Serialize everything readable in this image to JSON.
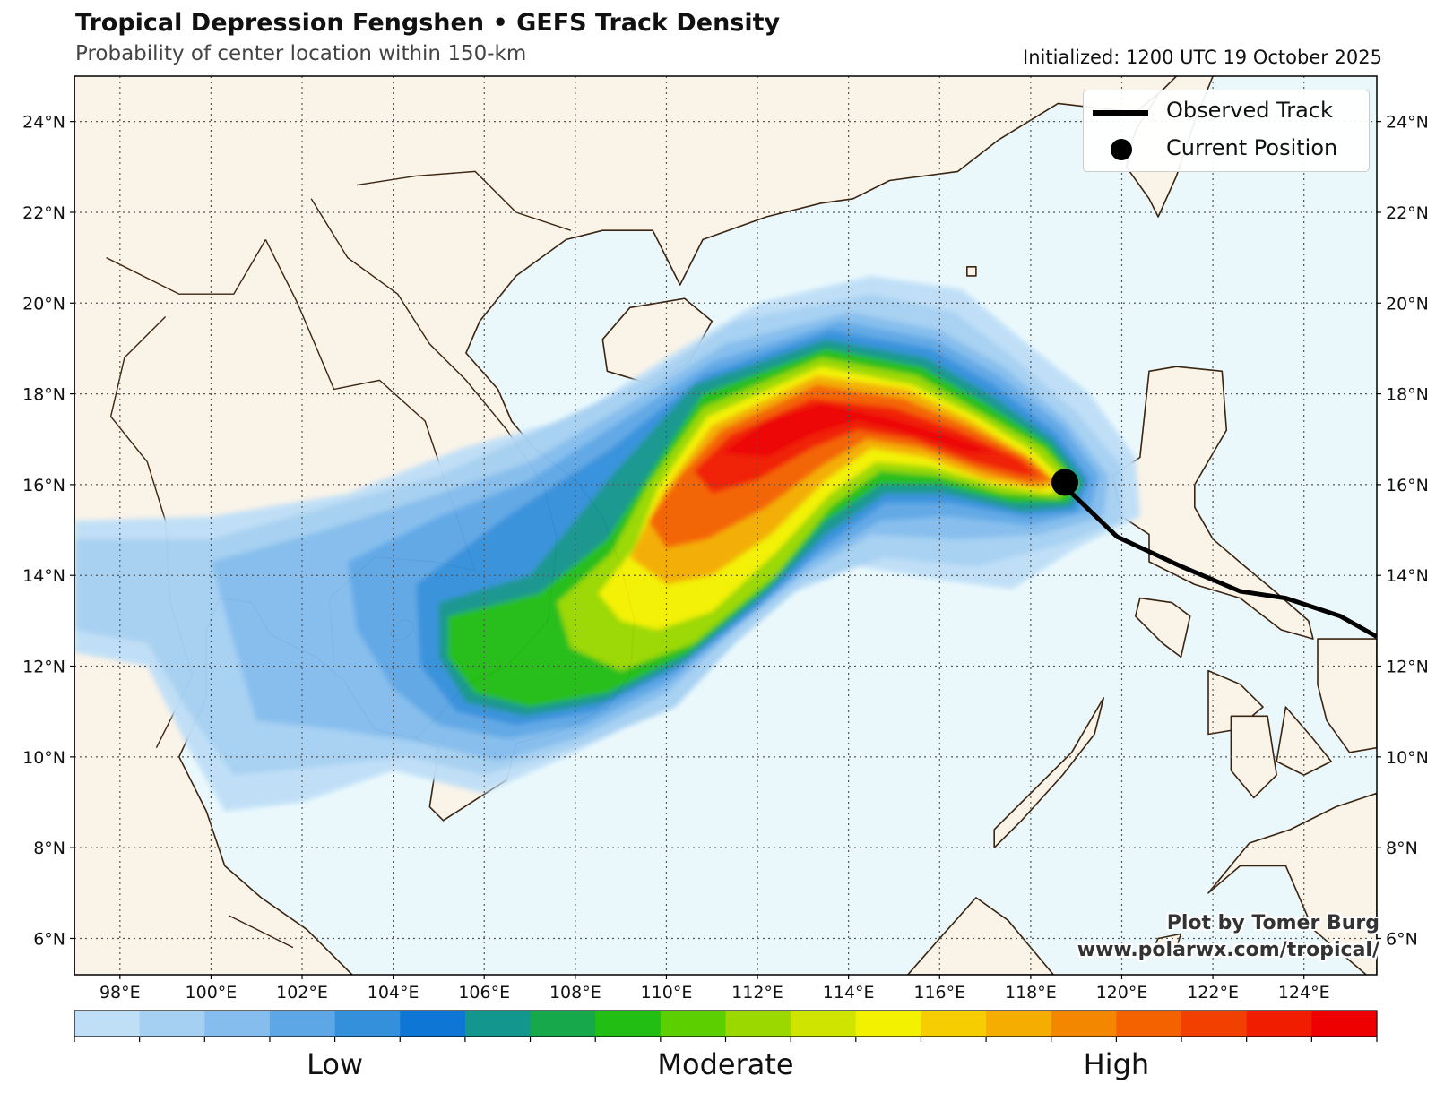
{
  "header": {
    "title": "Tropical Depression Fengshen • GEFS Track Density",
    "subtitle": "Probability of center location within 150-km",
    "initialized": "Initialized: 1200 UTC 19 October 2025"
  },
  "legend": {
    "observed_track": "Observed Track",
    "current_position": "Current Position"
  },
  "credit": {
    "line1": "Plot by Tomer Burg",
    "line2": "www.polarwx.com/tropical/"
  },
  "map": {
    "lon_range": [
      97,
      125.6
    ],
    "lat_range": [
      5.2,
      25.0
    ],
    "lon_ticks": [
      "98°E",
      "100°E",
      "102°E",
      "104°E",
      "106°E",
      "108°E",
      "110°E",
      "112°E",
      "114°E",
      "116°E",
      "118°E",
      "120°E",
      "122°E",
      "124°E"
    ],
    "lat_ticks": [
      "6°N",
      "8°N",
      "10°N",
      "12°N",
      "14°N",
      "16°N",
      "18°N",
      "20°N",
      "22°N",
      "24°N"
    ],
    "gridlines": true,
    "colors": {
      "ocean": "#eaf8fc",
      "land": "#faf3e8",
      "coast": "#3b2410",
      "track": "#000000"
    },
    "observed_track": [
      [
        125.6,
        12.65
      ],
      [
        124.8,
        13.1
      ],
      [
        123.6,
        13.5
      ],
      [
        122.6,
        13.65
      ],
      [
        121.3,
        14.2
      ],
      [
        119.9,
        14.85
      ],
      [
        118.7,
        16.0
      ]
    ],
    "current_position": [
      118.75,
      16.05
    ]
  },
  "colorbar": {
    "colors": [
      "#bfdff7",
      "#a6d0f2",
      "#84bdee",
      "#5ea7e6",
      "#3590dc",
      "#0e76d4",
      "#13968e",
      "#17a84b",
      "#22be14",
      "#5ccf00",
      "#9ad800",
      "#cfe500",
      "#f4f100",
      "#f5cd00",
      "#f4ad00",
      "#f48700",
      "#f46200",
      "#f24000",
      "#f11d00",
      "#ee0000"
    ],
    "labels": [
      {
        "text": "Low",
        "pos": 0.2
      },
      {
        "text": "Moderate",
        "pos": 0.5
      },
      {
        "text": "High",
        "pos": 0.8
      }
    ]
  }
}
